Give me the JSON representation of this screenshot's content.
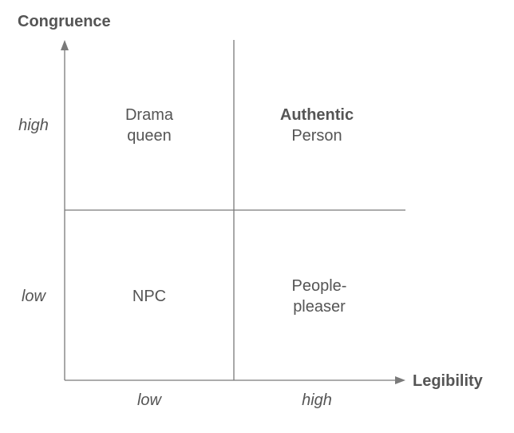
{
  "y_axis": {
    "title": "Congruence",
    "high_label": "high",
    "low_label": "low"
  },
  "x_axis": {
    "title": "Legibility",
    "low_label": "low",
    "high_label": "high"
  },
  "quadrants": {
    "top_left": {
      "line1": "Drama",
      "line2": "queen"
    },
    "top_right": {
      "line1": "Authentic",
      "line2": "Person"
    },
    "bottom_left": {
      "line1": "NPC"
    },
    "bottom_right": {
      "line1": "People-",
      "line2": "pleaser"
    }
  }
}
